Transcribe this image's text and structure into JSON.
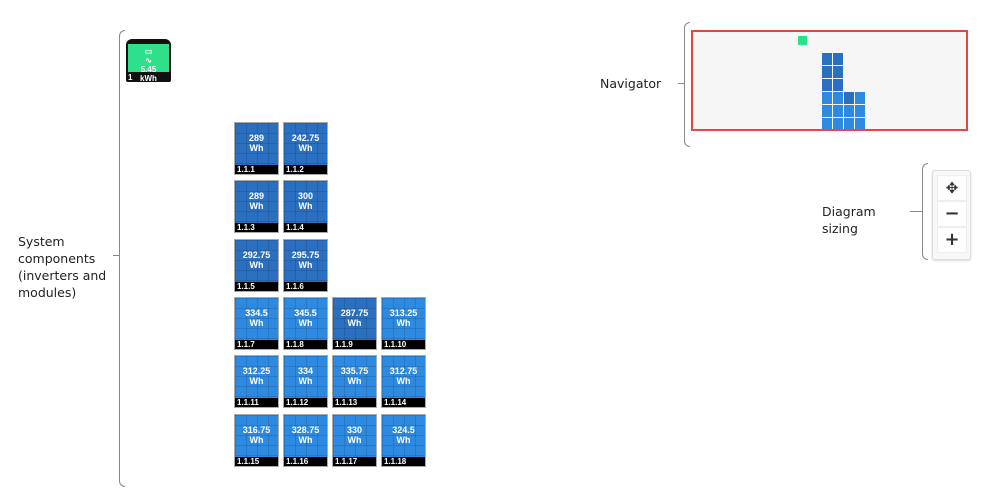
{
  "annotations": {
    "components": "System components (inverters and modules)",
    "navigator": "Navigator",
    "sizing": "Diagram sizing"
  },
  "inverter": {
    "value": "5.45",
    "unit": "kWh",
    "id": "1",
    "color": "#2ee08a"
  },
  "modules": [
    {
      "id": "1.1.1",
      "value": "289",
      "unit": "Wh",
      "dark": true
    },
    {
      "id": "1.1.2",
      "value": "242.75",
      "unit": "Wh",
      "dark": true
    },
    {
      "id": "1.1.3",
      "value": "289",
      "unit": "Wh",
      "dark": true
    },
    {
      "id": "1.1.4",
      "value": "300",
      "unit": "Wh",
      "dark": true
    },
    {
      "id": "1.1.5",
      "value": "292.75",
      "unit": "Wh",
      "dark": true
    },
    {
      "id": "1.1.6",
      "value": "295.75",
      "unit": "Wh",
      "dark": true
    },
    {
      "id": "1.1.7",
      "value": "334.5",
      "unit": "Wh"
    },
    {
      "id": "1.1.8",
      "value": "345.5",
      "unit": "Wh"
    },
    {
      "id": "1.1.9",
      "value": "287.75",
      "unit": "Wh",
      "dark": true
    },
    {
      "id": "1.1.10",
      "value": "313.25",
      "unit": "Wh"
    },
    {
      "id": "1.1.11",
      "value": "312.25",
      "unit": "Wh"
    },
    {
      "id": "1.1.12",
      "value": "334",
      "unit": "Wh"
    },
    {
      "id": "1.1.13",
      "value": "335.75",
      "unit": "Wh"
    },
    {
      "id": "1.1.14",
      "value": "312.75",
      "unit": "Wh"
    },
    {
      "id": "1.1.15",
      "value": "316.75",
      "unit": "Wh"
    },
    {
      "id": "1.1.16",
      "value": "328.75",
      "unit": "Wh"
    },
    {
      "id": "1.1.17",
      "value": "330",
      "unit": "Wh"
    },
    {
      "id": "1.1.18",
      "value": "324.5",
      "unit": "Wh"
    }
  ],
  "controls": {
    "fit": "✥",
    "zoom_out": "−",
    "zoom_in": "+"
  },
  "colors": {
    "navigator_border": "#e04848",
    "module": "#2e8ae0",
    "module_dark": "#2a6fc0"
  }
}
